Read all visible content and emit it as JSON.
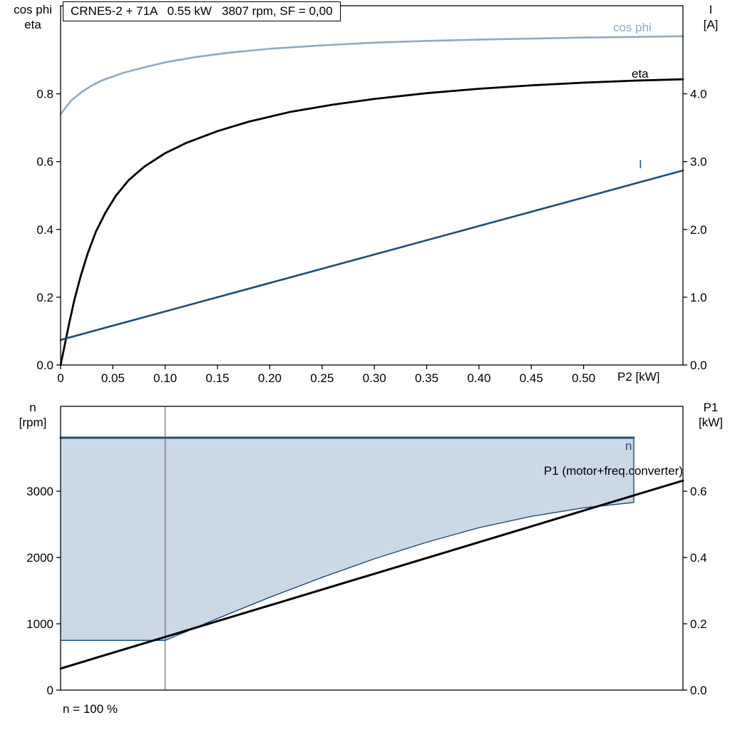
{
  "colors": {
    "light_blue": "#8FA9C2",
    "dark_blue": "#1F4E79",
    "black": "#000000",
    "area_fill": "#CBD8E6"
  },
  "labels": {
    "left_axis_top": {
      "line1": "cos phi",
      "line2": "eta"
    },
    "right_axis_top": {
      "line1": "I",
      "line2": "[A]"
    },
    "x_axis": "P2 [kW]",
    "left_axis_bottom": {
      "line1": "n",
      "line2": "[rpm]"
    },
    "right_axis_bottom": {
      "line1": "P1",
      "line2": "[kW]"
    },
    "footnote": "n = 100 %"
  },
  "chart_data": [
    {
      "type": "line",
      "title": "CRNE5-2 + 71A   0.55 kW   3807 rpm, SF = 0,00",
      "xlabel": "P2 [kW]",
      "xlim": [
        0,
        0.595
      ],
      "xticks": [
        {
          "v": 0,
          "label": "0"
        },
        {
          "v": 0.05,
          "label": "0.05"
        },
        {
          "v": 0.1,
          "label": "0.10"
        },
        {
          "v": 0.15,
          "label": "0.15"
        },
        {
          "v": 0.2,
          "label": "0.20"
        },
        {
          "v": 0.25,
          "label": "0.25"
        },
        {
          "v": 0.3,
          "label": "0.30"
        },
        {
          "v": 0.35,
          "label": "0.35"
        },
        {
          "v": 0.4,
          "label": "0.40"
        },
        {
          "v": 0.45,
          "label": "0.45"
        },
        {
          "v": 0.5,
          "label": "0.50"
        }
      ],
      "y_left": {
        "label": "cos phi / eta",
        "lim": [
          0,
          1.06
        ],
        "ticks": [
          {
            "v": 0.0,
            "label": "0.0"
          },
          {
            "v": 0.2,
            "label": "0.2"
          },
          {
            "v": 0.4,
            "label": "0.4"
          },
          {
            "v": 0.6,
            "label": "0.6"
          },
          {
            "v": 0.8,
            "label": "0.8"
          }
        ]
      },
      "y_right": {
        "label": "I [A]",
        "lim": [
          0,
          5.3
        ],
        "ticks": [
          {
            "v": 0.0,
            "label": "0.0"
          },
          {
            "v": 1.0,
            "label": "1.0"
          },
          {
            "v": 2.0,
            "label": "2.0"
          },
          {
            "v": 3.0,
            "label": "3.0"
          },
          {
            "v": 4.0,
            "label": "4.0"
          }
        ]
      },
      "series": [
        {
          "name": "cos phi",
          "axis": "left",
          "color": "#8FA9C2",
          "width": 2.6,
          "x": [
            0,
            0.01,
            0.02,
            0.03,
            0.04,
            0.06,
            0.08,
            0.1,
            0.13,
            0.16,
            0.2,
            0.25,
            0.3,
            0.35,
            0.4,
            0.45,
            0.5,
            0.55,
            0.595
          ],
          "y": [
            0.74,
            0.78,
            0.805,
            0.825,
            0.84,
            0.862,
            0.878,
            0.893,
            0.909,
            0.921,
            0.933,
            0.943,
            0.951,
            0.956,
            0.96,
            0.963,
            0.966,
            0.968,
            0.97
          ]
        },
        {
          "name": "eta",
          "axis": "left",
          "color": "#000000",
          "width": 2.8,
          "x": [
            0,
            0.004,
            0.008,
            0.013,
            0.019,
            0.026,
            0.034,
            0.043,
            0.053,
            0.065,
            0.08,
            0.1,
            0.12,
            0.15,
            0.18,
            0.22,
            0.26,
            0.3,
            0.35,
            0.4,
            0.45,
            0.5,
            0.55,
            0.595
          ],
          "y": [
            0.0,
            0.06,
            0.12,
            0.19,
            0.26,
            0.33,
            0.395,
            0.45,
            0.5,
            0.545,
            0.585,
            0.625,
            0.655,
            0.69,
            0.718,
            0.747,
            0.768,
            0.785,
            0.802,
            0.815,
            0.825,
            0.833,
            0.839,
            0.843
          ]
        },
        {
          "name": "I",
          "axis": "right",
          "color": "#1F4E79",
          "width": 2.6,
          "x": [
            0,
            0.1,
            0.2,
            0.3,
            0.4,
            0.5,
            0.595
          ],
          "y": [
            0.37,
            0.79,
            1.21,
            1.63,
            2.05,
            2.47,
            2.87
          ]
        }
      ]
    },
    {
      "type": "line",
      "xlabel": "P2 [kW]",
      "xlim": [
        0,
        0.595
      ],
      "xticks": [],
      "gridlines_x": [
        0.1
      ],
      "y_left": {
        "label": "n [rpm]",
        "lim": [
          0,
          4280
        ],
        "ticks": [
          {
            "v": 0,
            "label": "0"
          },
          {
            "v": 1000,
            "label": "1000"
          },
          {
            "v": 2000,
            "label": "2000"
          },
          {
            "v": 3000,
            "label": "3000"
          }
        ]
      },
      "y_right": {
        "label": "P1 [kW]",
        "lim": [
          0,
          0.856
        ],
        "ticks": [
          {
            "v": 0.0,
            "label": "0.0"
          },
          {
            "v": 0.2,
            "label": "0.2"
          },
          {
            "v": 0.4,
            "label": "0.4"
          },
          {
            "v": 0.6,
            "label": "0.6"
          }
        ]
      },
      "area": {
        "name": "speed-operating-range",
        "fill": "#CBD8E6",
        "stroke": "#1F4E79",
        "upper_n": 3807,
        "x_end": 0.548,
        "lower": {
          "x": [
            0,
            0.1,
            0.15,
            0.2,
            0.25,
            0.3,
            0.35,
            0.4,
            0.45,
            0.5,
            0.548
          ],
          "y": [
            750,
            750,
            1080,
            1400,
            1700,
            1980,
            2230,
            2450,
            2620,
            2750,
            2830
          ]
        }
      },
      "series": [
        {
          "name": "n",
          "axis": "left",
          "color": "#1F4E79",
          "width": 3,
          "x": [
            0,
            0.548
          ],
          "y": [
            3807,
            3807
          ]
        },
        {
          "name": "P1 (motor+freq.converter)",
          "axis": "right",
          "color": "#000000",
          "width": 3,
          "x": [
            0,
            0.595
          ],
          "y": [
            0.065,
            0.632
          ]
        }
      ],
      "footnote": "n = 100 %"
    }
  ]
}
